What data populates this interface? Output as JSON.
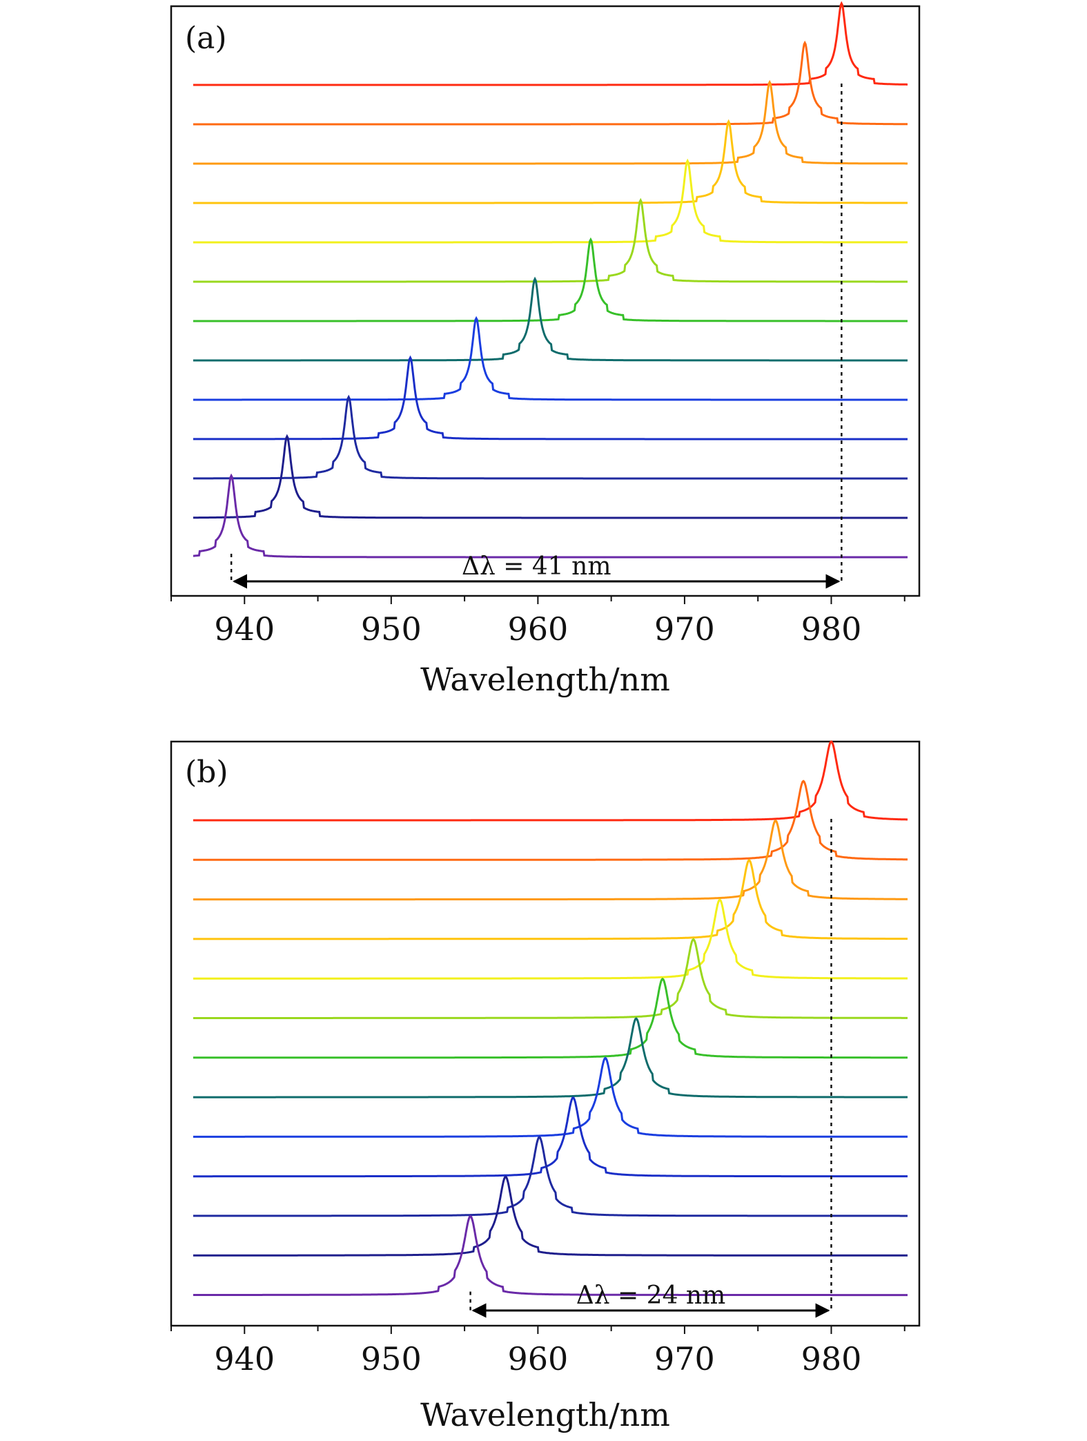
{
  "chart_data": [
    {
      "type": "line",
      "panel_label": "(a)",
      "title": "",
      "xlabel": "Wavelength/nm",
      "ylabel": "",
      "xlim": [
        935,
        986
      ],
      "x_ticks": [
        940,
        950,
        960,
        970,
        980
      ],
      "grid": false,
      "legend": "none",
      "layout": "stacked offset spectra, one per row",
      "series": [
        {
          "peak": 980.7,
          "color": "#ff2a10"
        },
        {
          "peak": 978.2,
          "color": "#ff6a12"
        },
        {
          "peak": 975.8,
          "color": "#ff9a12"
        },
        {
          "peak": 973.0,
          "color": "#ffc40d"
        },
        {
          "peak": 970.2,
          "color": "#f2f01c"
        },
        {
          "peak": 967.0,
          "color": "#9ad81e"
        },
        {
          "peak": 963.6,
          "color": "#38c02a"
        },
        {
          "peak": 959.8,
          "color": "#0f6c6c"
        },
        {
          "peak": 955.8,
          "color": "#1a3ee0"
        },
        {
          "peak": 951.3,
          "color": "#1a2fc8"
        },
        {
          "peak": 947.1,
          "color": "#1f2aa0"
        },
        {
          "peak": 942.9,
          "color": "#1e1e8c"
        },
        {
          "peak": 939.1,
          "color": "#6a2aa8"
        }
      ],
      "annotation": {
        "text": "Δλ = 41 nm",
        "from": 939.1,
        "to": 980.7
      }
    },
    {
      "type": "line",
      "panel_label": "(b)",
      "title": "",
      "xlabel": "Wavelength/nm",
      "ylabel": "",
      "xlim": [
        935,
        986
      ],
      "x_ticks": [
        940,
        950,
        960,
        970,
        980
      ],
      "grid": false,
      "legend": "none",
      "layout": "stacked offset spectra, one per row",
      "series": [
        {
          "peak": 980.0,
          "color": "#ff2a10"
        },
        {
          "peak": 978.1,
          "color": "#ff6a12"
        },
        {
          "peak": 976.2,
          "color": "#ff9a12"
        },
        {
          "peak": 974.4,
          "color": "#ffc40d"
        },
        {
          "peak": 972.4,
          "color": "#f2f01c"
        },
        {
          "peak": 970.6,
          "color": "#9ad81e"
        },
        {
          "peak": 968.5,
          "color": "#38c02a"
        },
        {
          "peak": 966.7,
          "color": "#0f6c6c"
        },
        {
          "peak": 964.6,
          "color": "#1a3ee0"
        },
        {
          "peak": 962.4,
          "color": "#1a2fc8"
        },
        {
          "peak": 960.1,
          "color": "#1f2aa0"
        },
        {
          "peak": 957.8,
          "color": "#1e1e8c"
        },
        {
          "peak": 955.4,
          "color": "#6a2aa8"
        }
      ],
      "annotation": {
        "text": "Δλ = 24 nm",
        "from": 955.4,
        "to": 980.0
      }
    }
  ]
}
